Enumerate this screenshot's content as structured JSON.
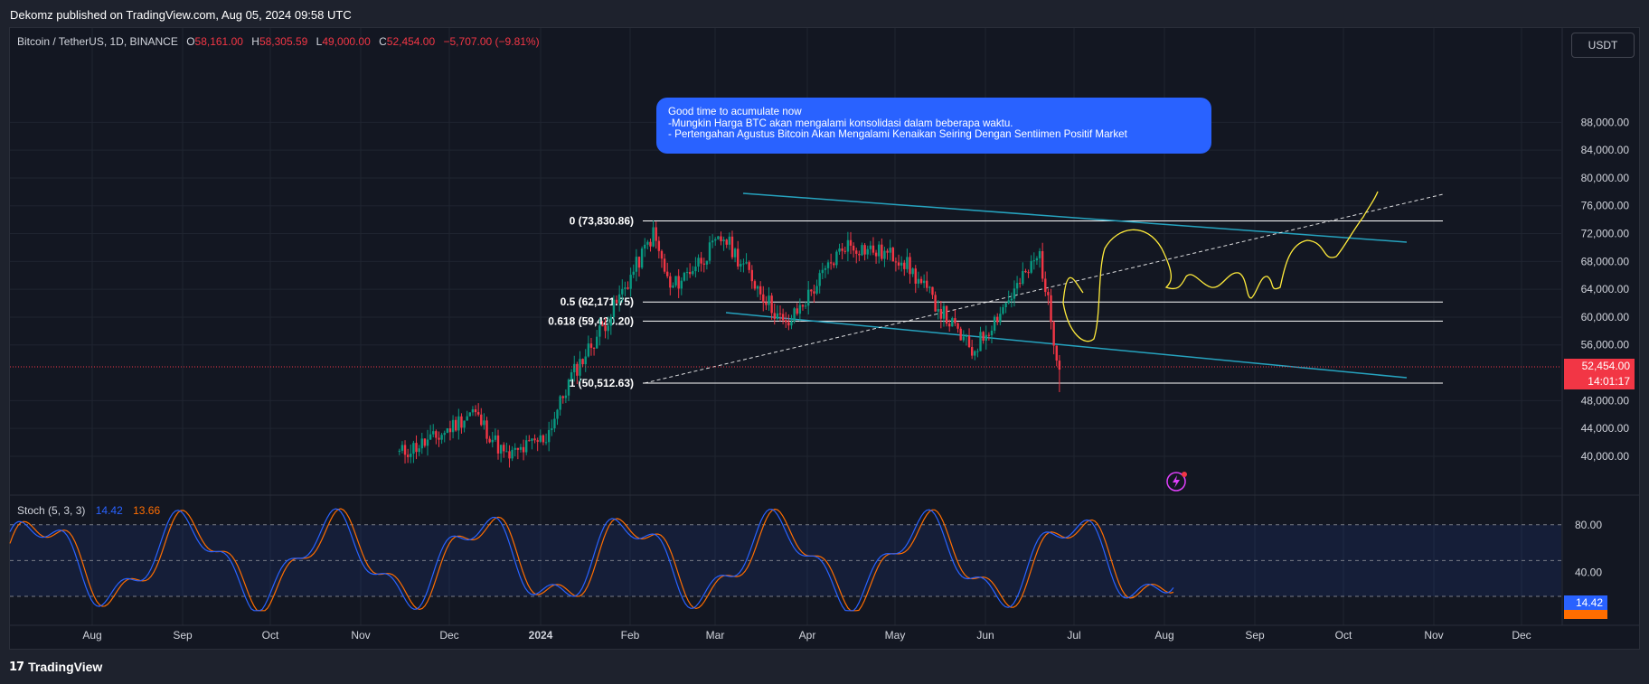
{
  "header": {
    "published": "Dekomz published on TradingView.com, Aug 05, 2024 09:58 UTC"
  },
  "legend": {
    "symbol": "Bitcoin / TetherUS, 1D, BINANCE",
    "o_label": "O",
    "o_value": "58,161.00",
    "h_label": "H",
    "h_value": "58,305.59",
    "l_label": "L",
    "l_value": "49,000.00",
    "c_label": "C",
    "c_value": "52,454.00",
    "change": "−5,707.00 (−9.81%)"
  },
  "currency_button": "USDT",
  "note": {
    "lines": [
      "Good time to acumulate now",
      "-Mungkin Harga BTC akan mengalami konsolidasi dalam beberapa waktu.",
      "- Pertengahan Agustus Bitcoin Akan Mengalami Kenaikan Seiring Dengan Sentiimen Positif Market"
    ]
  },
  "price_axis": {
    "ticks": [
      "88,000.00",
      "84,000.00",
      "80,000.00",
      "76,000.00",
      "72,000.00",
      "68,000.00",
      "64,000.00",
      "60,000.00",
      "56,000.00",
      "48,000.00",
      "44,000.00",
      "40,000.00"
    ],
    "last_price": "52,454.00",
    "countdown": "14:01:17"
  },
  "fib_levels": [
    {
      "label": "0 (73,830.86)",
      "price": 73830.86
    },
    {
      "label": "0.5 (62,171.75)",
      "price": 62171.75
    },
    {
      "label": "0.618 (59,420.20)",
      "price": 59420.2
    },
    {
      "label": "1 (50,512.63)",
      "price": 50512.63
    }
  ],
  "stoch": {
    "title": "Stoch (5, 3, 3)",
    "k": "14.42",
    "d": "13.66",
    "ticks": [
      "80.00",
      "40.00"
    ],
    "k_badge": "14.42"
  },
  "time_axis": [
    "Aug",
    "Sep",
    "Oct",
    "Nov",
    "Dec",
    "2024",
    "Feb",
    "Mar",
    "Apr",
    "May",
    "Jun",
    "Jul",
    "Aug",
    "Sep",
    "Oct",
    "Nov",
    "Dec"
  ],
  "footer": {
    "brand": "TradingView",
    "mark": "17"
  },
  "colors": {
    "bull": "#089981",
    "bear": "#f23645",
    "channel": "#26a3bf",
    "projection": "#ffeb3b",
    "note_bg": "#2962ff",
    "k_line": "#2962ff",
    "d_line": "#ff6d00"
  },
  "chart_data": {
    "type": "candlestick",
    "symbol": "Bitcoin / TetherUS",
    "interval": "1D",
    "y_axis_range": [
      36000,
      90000
    ],
    "channel": {
      "upper": [
        {
          "date": "2024-03-14",
          "price": 73830
        },
        {
          "date": "2024-09-13",
          "price": 67900
        }
      ],
      "lower": [
        {
          "date": "2024-03-05",
          "price": 59000
        },
        {
          "date": "2024-09-13",
          "price": 51000
        }
      ]
    },
    "trendline_dashed": [
      {
        "date": "2024-02-05",
        "price": 50500
      },
      {
        "date": "2024-10-25",
        "price": 73830
      }
    ],
    "close_path": [
      {
        "date": "2023-12-15",
        "price": 40400
      },
      {
        "date": "2023-12-28",
        "price": 42600
      },
      {
        "date": "2024-01-10",
        "price": 46500
      },
      {
        "date": "2024-01-22",
        "price": 39800
      },
      {
        "date": "2024-02-05",
        "price": 42800
      },
      {
        "date": "2024-02-14",
        "price": 51500
      },
      {
        "date": "2024-02-28",
        "price": 60500
      },
      {
        "date": "2024-03-14",
        "price": 72000
      },
      {
        "date": "2024-03-20",
        "price": 64000
      },
      {
        "date": "2024-04-08",
        "price": 71500
      },
      {
        "date": "2024-04-30",
        "price": 58500
      },
      {
        "date": "2024-05-21",
        "price": 70500
      },
      {
        "date": "2024-06-10",
        "price": 68500
      },
      {
        "date": "2024-07-05",
        "price": 55000
      },
      {
        "date": "2024-07-29",
        "price": 69000
      },
      {
        "date": "2024-08-05",
        "price": 52454
      }
    ]
  }
}
